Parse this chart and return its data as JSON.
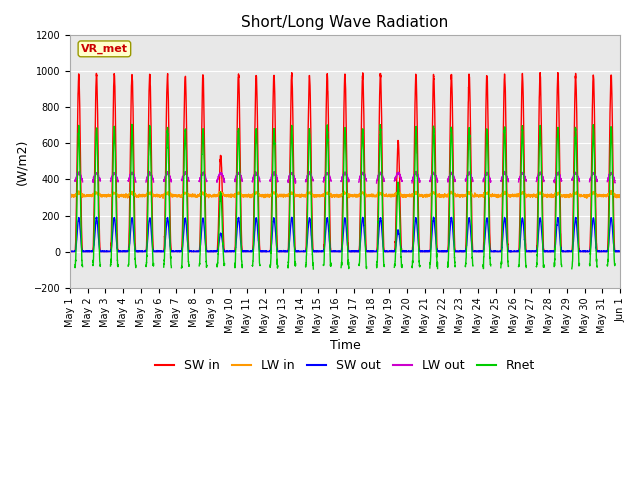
{
  "title": "Short/Long Wave Radiation",
  "xlabel": "Time",
  "ylabel": "(W/m2)",
  "ylim": [
    -200,
    1200
  ],
  "yticks": [
    -200,
    0,
    200,
    400,
    600,
    800,
    1000,
    1200
  ],
  "n_days": 31,
  "points_per_day": 144,
  "sw_in_peak": 980,
  "lw_in_base": 310,
  "lw_out_base": 390,
  "colors": {
    "SW_in": "#ff0000",
    "LW_in": "#ff9900",
    "SW_out": "#0000ff",
    "LW_out": "#cc00cc",
    "Rnet": "#00cc00"
  },
  "annotation_text": "VR_met",
  "bg_color": "#ffffff",
  "plot_bg_color": "#e8e8e8",
  "grid_color": "#ffffff",
  "xtick_start_day": 1,
  "linewidth": 1.0,
  "tick_fontsize": 7,
  "title_fontsize": 11,
  "axis_label_fontsize": 9
}
